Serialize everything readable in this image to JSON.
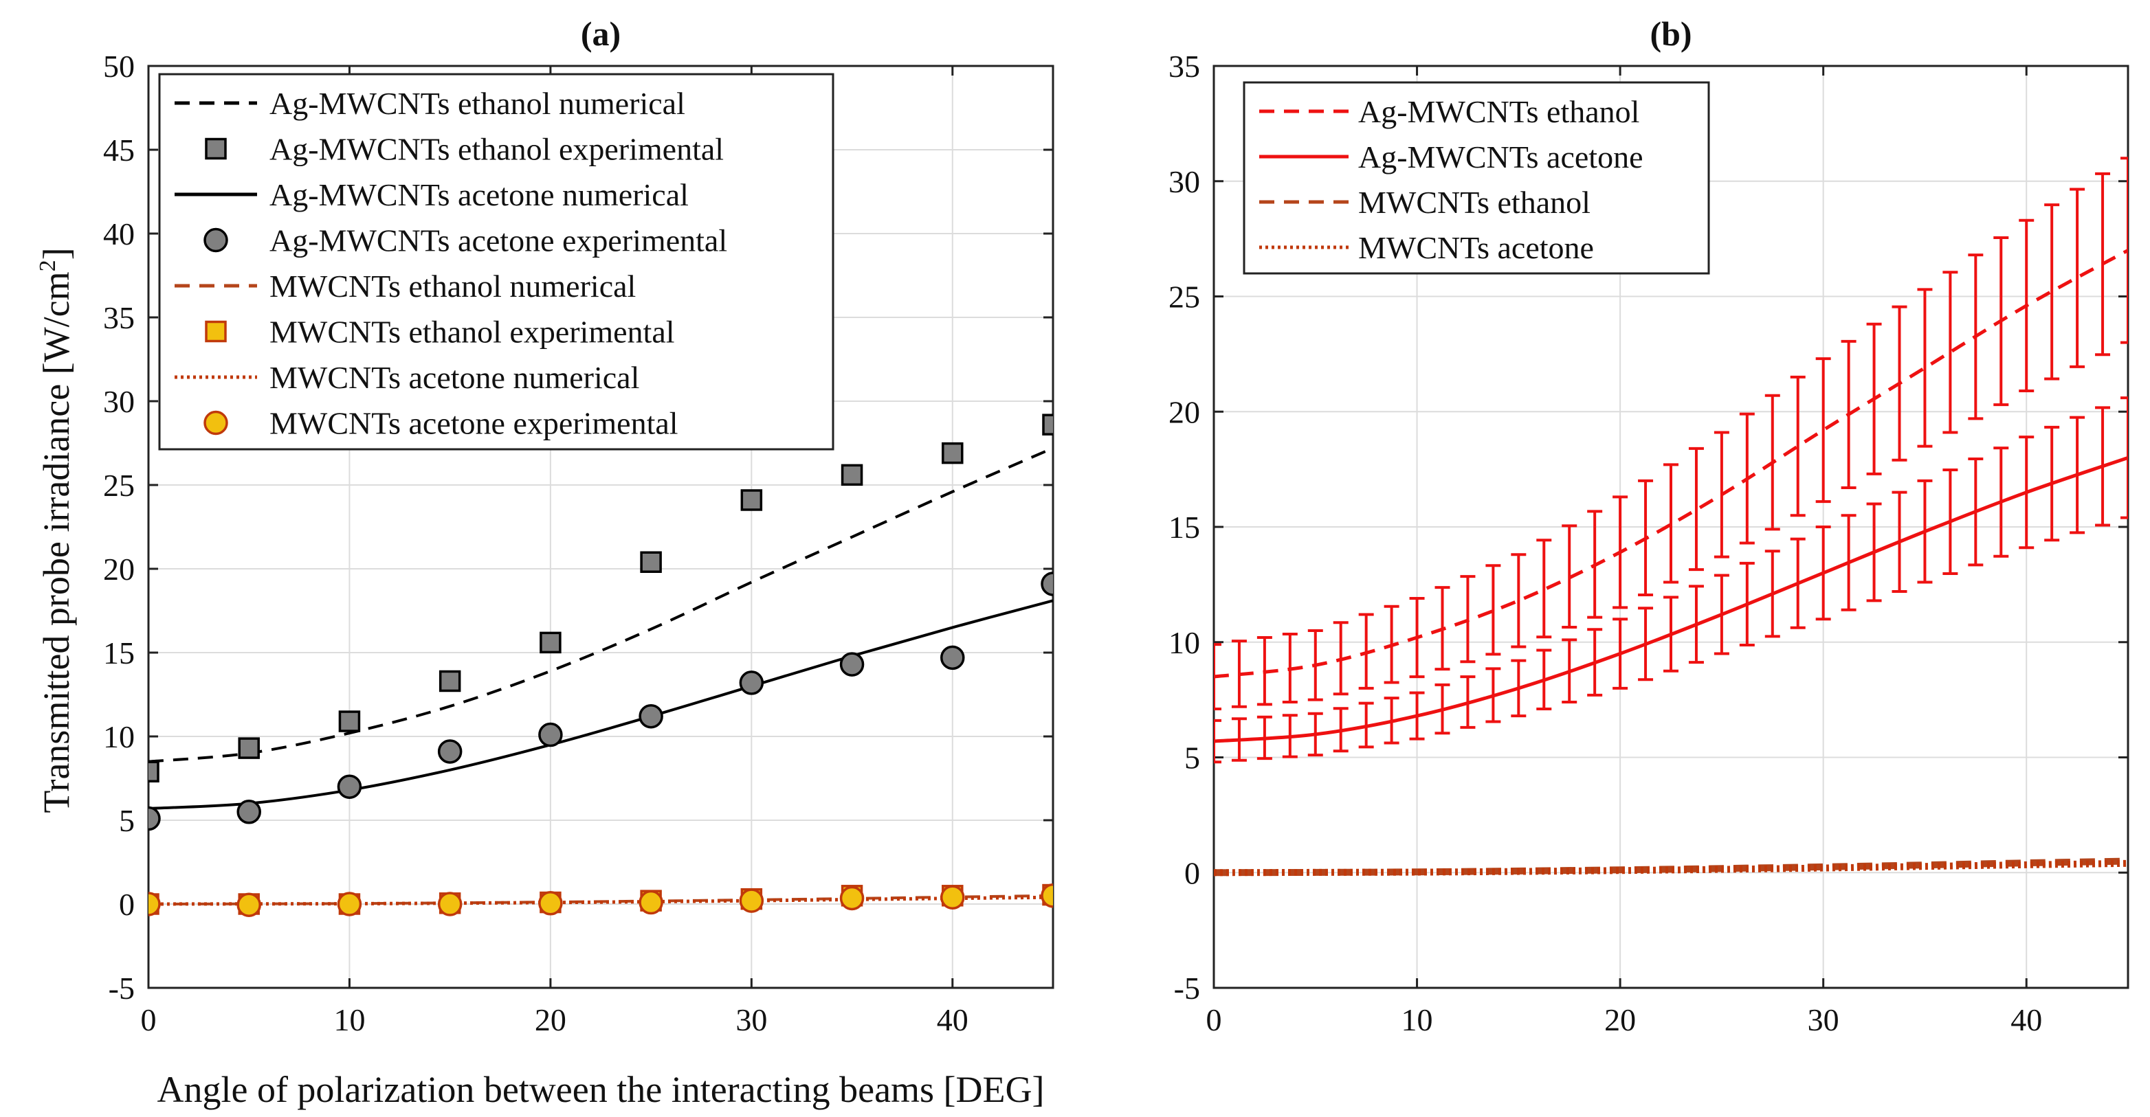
{
  "figure": {
    "xlabel_shared": "Angle of polarization between the interacting beams [DEG]"
  },
  "chart_data": [
    {
      "type": "line",
      "title": "(a)",
      "xlabel": "Angle of polarization between the interacting beams [DEG]",
      "ylabel": "Transmitted probe irradiance [W/cm",
      "ylabel_sup": "2",
      "ylabel_close": "]",
      "xlim": [
        0,
        45
      ],
      "ylim": [
        -5,
        50
      ],
      "xticks": [
        0,
        10,
        20,
        30,
        40
      ],
      "yticks": [
        -5,
        0,
        5,
        10,
        15,
        20,
        25,
        30,
        35,
        40,
        45,
        50
      ],
      "grid": true,
      "legend_position": "top-left",
      "series": [
        {
          "name": "Ag-MWCNTs ethanol numerical",
          "kind": "line",
          "style": "dashed",
          "color": "#000000",
          "x": [
            0,
            5,
            10,
            15,
            20,
            25,
            30,
            35,
            40,
            45
          ],
          "y": [
            8.5,
            9.0,
            10.2,
            11.8,
            13.9,
            16.4,
            19.2,
            21.9,
            24.6,
            27.2
          ]
        },
        {
          "name": "Ag-MWCNTs ethanol experimental",
          "kind": "marker",
          "marker": "square",
          "color": "#808080",
          "edge": "#000000",
          "x": [
            0,
            5,
            10,
            15,
            20,
            25,
            30,
            35,
            40,
            45
          ],
          "y": [
            7.9,
            9.3,
            10.9,
            13.3,
            15.6,
            20.4,
            24.1,
            25.6,
            26.9,
            28.6
          ]
        },
        {
          "name": "Ag-MWCNTs acetone numerical",
          "kind": "line",
          "style": "solid",
          "color": "#000000",
          "x": [
            0,
            5,
            10,
            15,
            20,
            25,
            30,
            35,
            40,
            45
          ],
          "y": [
            5.7,
            6.0,
            6.8,
            8.0,
            9.5,
            11.2,
            13.0,
            14.8,
            16.5,
            18.1
          ]
        },
        {
          "name": "Ag-MWCNTs acetone experimental",
          "kind": "marker",
          "marker": "circle",
          "color": "#808080",
          "edge": "#000000",
          "x": [
            0,
            5,
            10,
            15,
            20,
            25,
            30,
            35,
            40,
            45
          ],
          "y": [
            5.1,
            5.5,
            7.0,
            9.1,
            10.1,
            11.2,
            13.2,
            14.3,
            14.7,
            19.1
          ]
        },
        {
          "name": "MWCNTs ethanol numerical",
          "kind": "line",
          "style": "dashed",
          "color": "#b5451b",
          "x": [
            0,
            5,
            10,
            15,
            20,
            25,
            30,
            35,
            40,
            45
          ],
          "y": [
            0.0,
            0.01,
            0.03,
            0.07,
            0.12,
            0.18,
            0.25,
            0.33,
            0.42,
            0.5
          ]
        },
        {
          "name": "MWCNTs ethanol experimental",
          "kind": "marker",
          "marker": "square",
          "color": "#f2c00f",
          "edge": "#c0390b",
          "x": [
            0,
            5,
            10,
            15,
            20,
            25,
            30,
            35,
            40,
            45
          ],
          "y": [
            0.0,
            0.0,
            0.0,
            0.05,
            0.1,
            0.2,
            0.3,
            0.5,
            0.5,
            0.55
          ]
        },
        {
          "name": "MWCNTs acetone numerical",
          "kind": "line",
          "style": "dotted",
          "color": "#c0390b",
          "x": [
            0,
            5,
            10,
            15,
            20,
            25,
            30,
            35,
            40,
            45
          ],
          "y": [
            0.0,
            0.01,
            0.02,
            0.05,
            0.09,
            0.14,
            0.2,
            0.27,
            0.34,
            0.4
          ]
        },
        {
          "name": "MWCNTs acetone experimental",
          "kind": "marker",
          "marker": "circle",
          "color": "#f2c00f",
          "edge": "#c0390b",
          "x": [
            0,
            5,
            10,
            15,
            20,
            25,
            30,
            35,
            40,
            45
          ],
          "y": [
            0.0,
            -0.05,
            0.0,
            0.0,
            0.05,
            0.1,
            0.2,
            0.35,
            0.4,
            0.5
          ]
        }
      ]
    },
    {
      "type": "line",
      "title": "(b)",
      "xlim": [
        0,
        45
      ],
      "ylim": [
        -5,
        35
      ],
      "xticks": [
        0,
        10,
        20,
        30,
        40
      ],
      "yticks": [
        -5,
        0,
        5,
        10,
        15,
        20,
        25,
        30,
        35
      ],
      "grid": true,
      "legend_position": "top-left",
      "series": [
        {
          "name": "Ag-MWCNTs ethanol",
          "style": "dashed",
          "color": "#ee1111",
          "error_bars": true,
          "x": [
            0,
            5,
            10,
            15,
            20,
            25,
            30,
            35,
            40,
            45
          ],
          "y": [
            8.5,
            9.0,
            10.2,
            11.8,
            13.9,
            16.4,
            19.2,
            21.9,
            24.6,
            27.0
          ],
          "err": [
            1.4,
            1.5,
            1.7,
            2.0,
            2.4,
            2.7,
            3.1,
            3.4,
            3.7,
            4.0
          ]
        },
        {
          "name": "Ag-MWCNTs acetone",
          "style": "solid",
          "color": "#ee1111",
          "error_bars": true,
          "x": [
            0,
            5,
            10,
            15,
            20,
            25,
            30,
            35,
            40,
            45
          ],
          "y": [
            5.7,
            6.0,
            6.8,
            8.0,
            9.5,
            11.2,
            13.0,
            14.8,
            16.5,
            18.0
          ],
          "err": [
            0.9,
            0.9,
            1.0,
            1.2,
            1.5,
            1.7,
            2.0,
            2.2,
            2.4,
            2.6
          ]
        },
        {
          "name": "MWCNTs ethanol",
          "style": "dashed",
          "color": "#b5451b",
          "error_bars": false,
          "x": [
            0,
            5,
            10,
            15,
            20,
            25,
            30,
            35,
            40,
            45
          ],
          "y": [
            0.0,
            0.01,
            0.03,
            0.07,
            0.12,
            0.18,
            0.25,
            0.33,
            0.42,
            0.5
          ]
        },
        {
          "name": "MWCNTs acetone",
          "style": "dotted",
          "color": "#c0390b",
          "error_bars": false,
          "x": [
            0,
            5,
            10,
            15,
            20,
            25,
            30,
            35,
            40,
            45
          ],
          "y": [
            0.0,
            0.01,
            0.02,
            0.05,
            0.09,
            0.14,
            0.2,
            0.27,
            0.34,
            0.4
          ]
        }
      ]
    }
  ]
}
